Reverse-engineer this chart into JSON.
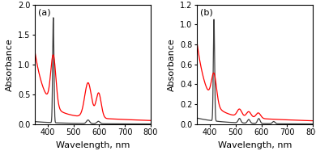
{
  "panel_a": {
    "label": "(a)",
    "xlim": [
      350,
      800
    ],
    "ylim": [
      0,
      2.0
    ],
    "yticks": [
      0,
      0.5,
      1.0,
      1.5,
      2.0
    ],
    "xticks": [
      400,
      500,
      600,
      700,
      800
    ],
    "ylabel": "Absorbance",
    "xlabel": "Wavelength, nm"
  },
  "panel_b": {
    "label": "(b)",
    "xlim": [
      350,
      800
    ],
    "ylim": [
      0,
      1.2
    ],
    "yticks": [
      0,
      0.2,
      0.4,
      0.6,
      0.8,
      1.0,
      1.2
    ],
    "xticks": [
      400,
      500,
      600,
      700,
      800
    ],
    "ylabel": "Absorbance",
    "xlabel": "Wavelength, nm"
  },
  "colors": {
    "black": "#404040",
    "red": "#ff0000",
    "background": "#ffffff"
  },
  "label_fontsize": 8,
  "tick_fontsize": 7,
  "linewidth": 0.9
}
